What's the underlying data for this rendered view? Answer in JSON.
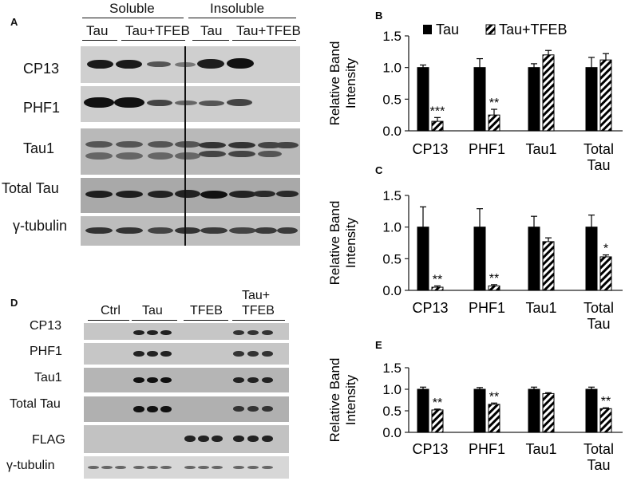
{
  "panels": {
    "A": {
      "letter": "A",
      "groups": [
        "Soluble",
        "Insoluble"
      ],
      "conditions": [
        "Tau",
        "Tau+TFEB",
        "Tau",
        "Tau+TFEB"
      ],
      "rows": [
        "CP13",
        "PHF1",
        "Tau1",
        "Total Tau",
        "γ-tubulin"
      ]
    },
    "D": {
      "letter": "D",
      "groups": [
        "Ctrl",
        "Tau",
        "TFEB",
        "Tau+",
        "TFEB"
      ],
      "rows": [
        "CP13",
        "PHF1",
        "Tau1",
        "Total Tau",
        "FLAG",
        "γ-tubulin"
      ]
    }
  },
  "legend": {
    "tau": "Tau",
    "tau_tfeb": "Tau+TFEB"
  },
  "ylabel_line1": "Relative Band",
  "ylabel_line2": "Intensity",
  "chart_data": [
    {
      "panel": "B",
      "type": "bar",
      "categories": [
        "CP13",
        "PHF1",
        "Tau1",
        "Total Tau"
      ],
      "series": [
        {
          "name": "Tau",
          "values": [
            1.0,
            1.0,
            1.0,
            1.0
          ],
          "errors": [
            0.04,
            0.14,
            0.06,
            0.16
          ],
          "color": "#000000"
        },
        {
          "name": "Tau+TFEB",
          "values": [
            0.15,
            0.25,
            1.2,
            1.12
          ],
          "errors": [
            0.06,
            0.09,
            0.07,
            0.1
          ],
          "pattern": "hatch"
        }
      ],
      "significance": [
        "***",
        "**",
        "",
        ""
      ],
      "ylim": [
        0,
        1.5
      ],
      "yticks": [
        "0.0",
        "0.5",
        "1.0",
        "1.5"
      ],
      "ylabel": "Relative Band Intensity",
      "legend": "top"
    },
    {
      "panel": "C",
      "type": "bar",
      "categories": [
        "CP13",
        "PHF1",
        "Tau1",
        "Total Tau"
      ],
      "series": [
        {
          "name": "Tau",
          "values": [
            1.0,
            1.0,
            1.0,
            1.0
          ],
          "errors": [
            0.32,
            0.29,
            0.17,
            0.19
          ],
          "color": "#000000"
        },
        {
          "name": "Tau+TFEB",
          "values": [
            0.05,
            0.07,
            0.77,
            0.53
          ],
          "errors": [
            0.02,
            0.02,
            0.06,
            0.03
          ],
          "pattern": "hatch"
        }
      ],
      "significance": [
        "**",
        "**",
        "",
        "*"
      ],
      "ylim": [
        0,
        1.5
      ],
      "yticks": [
        "0.0",
        "0.5",
        "1.0",
        "1.5"
      ],
      "ylabel": "Relative Band Intensity"
    },
    {
      "panel": "E",
      "type": "bar",
      "categories": [
        "CP13",
        "PHF1",
        "Tau1",
        "Total Tau"
      ],
      "series": [
        {
          "name": "Tau",
          "values": [
            1.0,
            1.0,
            1.0,
            1.0
          ],
          "errors": [
            0.05,
            0.04,
            0.05,
            0.05
          ],
          "color": "#000000"
        },
        {
          "name": "Tau+TFEB",
          "values": [
            0.52,
            0.65,
            0.9,
            0.55
          ],
          "errors": [
            0.02,
            0.03,
            0.02,
            0.02
          ],
          "pattern": "hatch"
        }
      ],
      "significance": [
        "**",
        "**",
        "",
        "**"
      ],
      "ylim": [
        0,
        1.5
      ],
      "yticks": [
        "0.0",
        "0.5",
        "1.0",
        "1.5"
      ],
      "ylabel": "Relative Band Intensity"
    }
  ]
}
